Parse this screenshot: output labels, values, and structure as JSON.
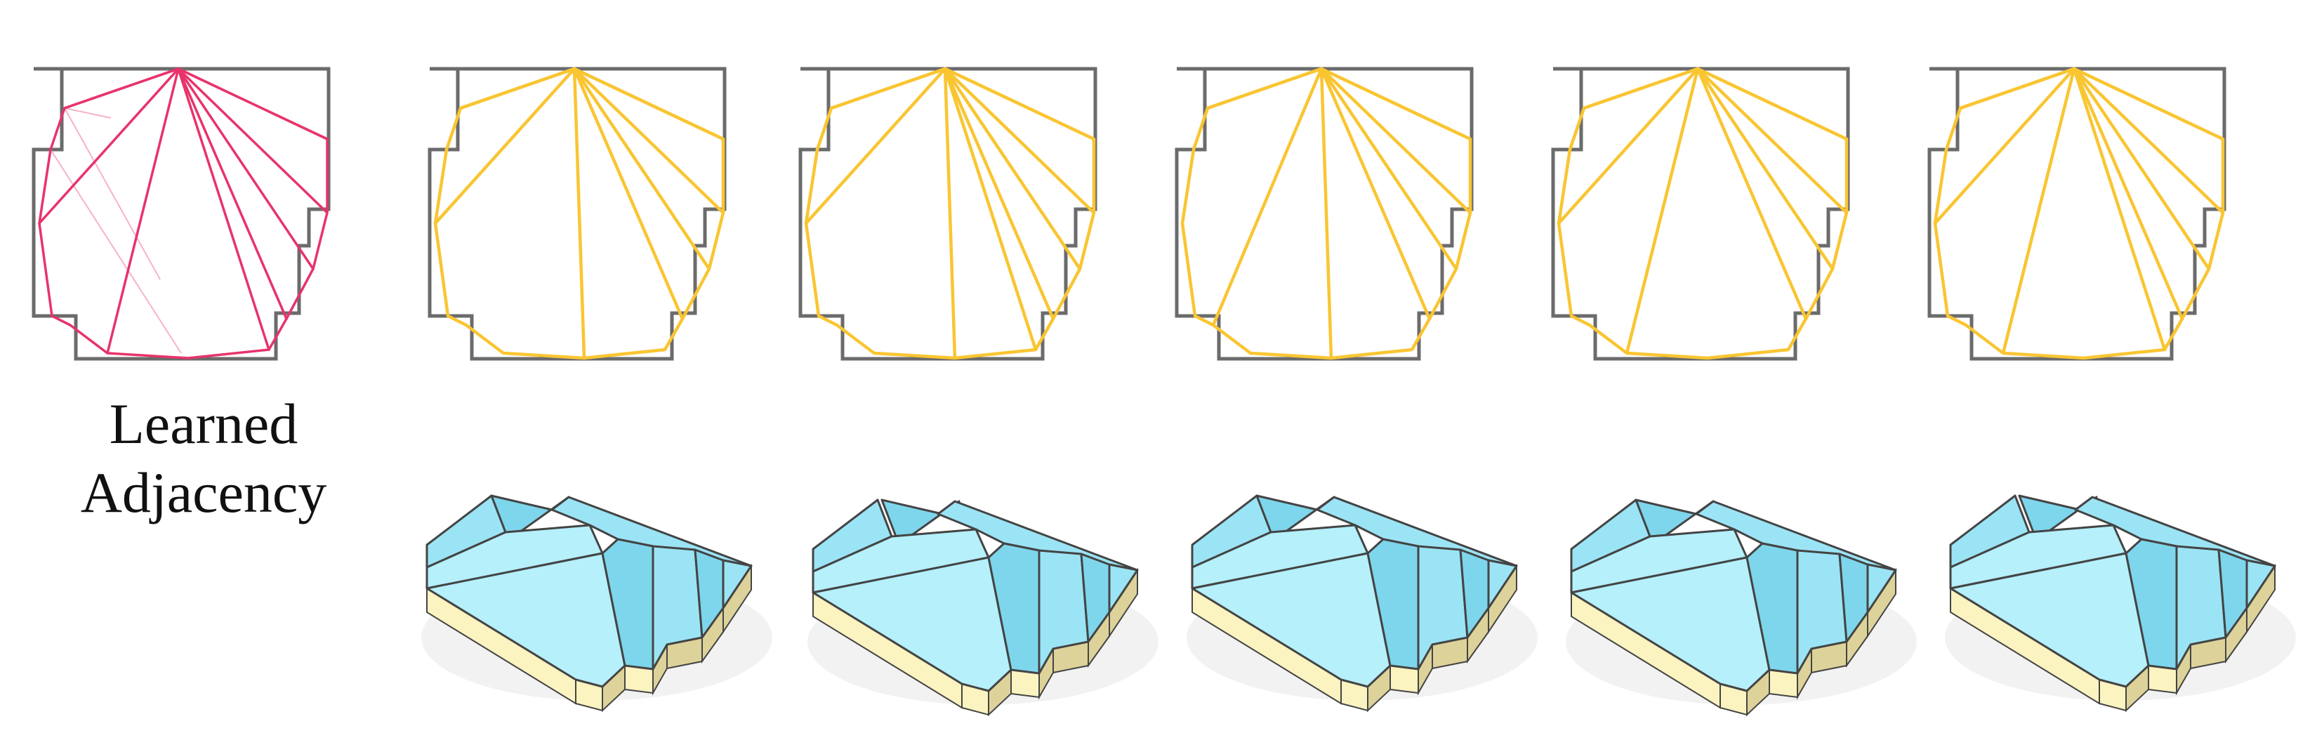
{
  "caption": {
    "line1": "Learned",
    "line2": "Adjacency"
  },
  "colors": {
    "outline": "#6b6b6b",
    "learned_edges": "#e8336b",
    "learned_edges_faint": "#f6b3c6",
    "candidate_edges": "#f9c531",
    "roof_face_light": "#b5f0fb",
    "roof_face_mid": "#9be4f5",
    "roof_face_dark": "#7ed6ec",
    "roof_edge": "#444444",
    "wall_light": "#fbf3c0",
    "wall_dark": "#ddd39a"
  },
  "panels": {
    "count": 6,
    "learned_panel_index": 0
  },
  "models": {
    "count": 5
  }
}
